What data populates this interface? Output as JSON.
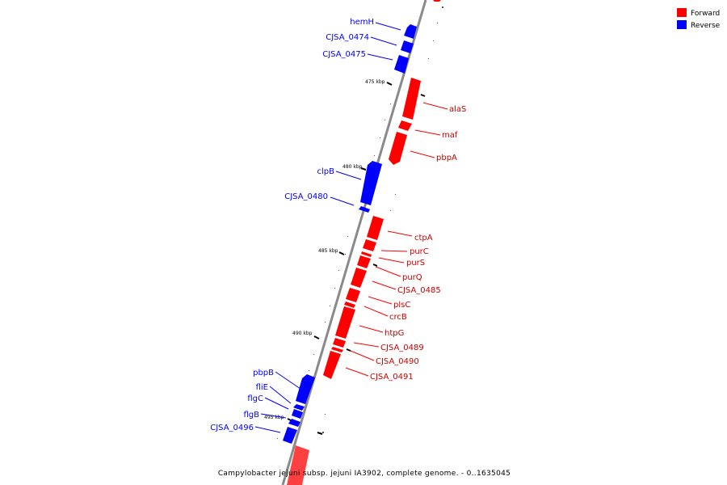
{
  "legend": [
    {
      "label": "Forward",
      "color": "#ff0000"
    },
    {
      "label": "Reverse",
      "color": "#0000ff"
    }
  ],
  "caption": "Campylobacter jejuni subsp. jejuni IA3902, complete genome. - 0..1635045",
  "ticks": [
    "475 kbp",
    "480 kbp",
    "485 kbp",
    "490 kbp",
    "495 kbp"
  ],
  "forward_genes": [
    "alaS",
    "maf",
    "pbpA",
    "ctpA",
    "purC",
    "purS",
    "purQ",
    "CJSA_0485",
    "plsC",
    "crcB",
    "htpG",
    "CJSA_0489",
    "CJSA_0490",
    "CJSA_0491"
  ],
  "reverse_genes": [
    "hemH",
    "CJSA_0474",
    "CJSA_0475",
    "clpB",
    "CJSA_0480",
    "pbpB",
    "fliE",
    "flgC",
    "flgB",
    "CJSA_0496"
  ]
}
